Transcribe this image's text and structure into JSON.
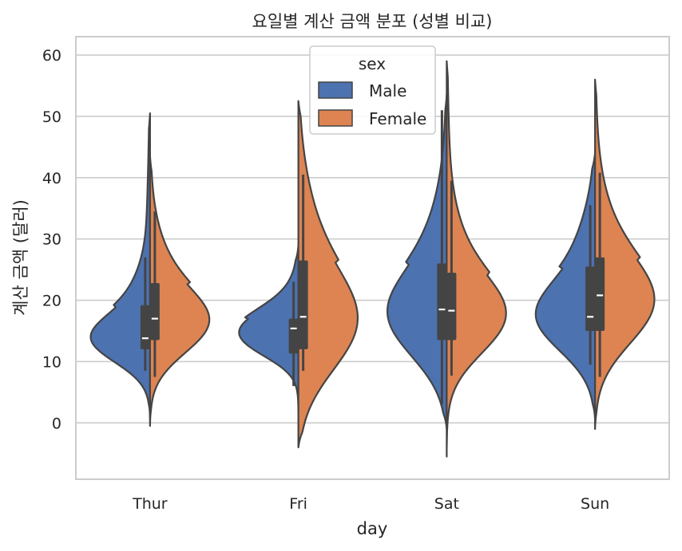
{
  "chart_data": {
    "type": "violin",
    "title": "요일별 계산 금액 분포 (성별 비교)",
    "xlabel": "day",
    "ylabel": "계산 금액 (달러)",
    "categories": [
      "Thur",
      "Fri",
      "Sat",
      "Sun"
    ],
    "ylim": [
      -9.2,
      63
    ],
    "yticks": [
      0,
      10,
      20,
      30,
      40,
      50,
      60
    ],
    "grid": true,
    "split": true,
    "legend": {
      "title": "sex",
      "position": "top-center"
    },
    "series": [
      {
        "name": "Male",
        "color": "#4c72b0",
        "violins": [
          {
            "day": "Thur",
            "min": 0.5,
            "max": 50.5,
            "q1": 12.0,
            "median": 13.8,
            "q3": 19.2,
            "whisker_low": 8.5,
            "whisker_high": 27.0
          },
          {
            "day": "Fri",
            "min": -0.5,
            "max": 29.0,
            "q1": 11.3,
            "median": 15.4,
            "q3": 17.0,
            "whisker_low": 6.0,
            "whisker_high": 23.0
          },
          {
            "day": "Sat",
            "min": -1.0,
            "max": 53.5,
            "q1": 13.5,
            "median": 18.5,
            "q3": 26.0,
            "whisker_low": 3.0,
            "whisker_high": 51.0
          },
          {
            "day": "Sun",
            "min": 0.5,
            "max": 44.0,
            "q1": 15.0,
            "median": 17.3,
            "q3": 25.5,
            "whisker_low": 9.5,
            "whisker_high": 35.5
          }
        ]
      },
      {
        "name": "Female",
        "color": "#dd8452",
        "violins": [
          {
            "day": "Thur",
            "min": -0.5,
            "max": 43.5,
            "q1": 13.5,
            "median": 17.0,
            "q3": 22.8,
            "whisker_low": 7.5,
            "whisker_high": 34.5
          },
          {
            "day": "Fri",
            "min": -4.0,
            "max": 52.5,
            "q1": 12.0,
            "median": 17.3,
            "q3": 26.5,
            "whisker_low": 8.5,
            "whisker_high": 40.5
          },
          {
            "day": "Sat",
            "min": -5.5,
            "max": 59.0,
            "q1": 13.5,
            "median": 18.3,
            "q3": 24.5,
            "whisker_low": 7.7,
            "whisker_high": 39.5
          },
          {
            "day": "Sun",
            "min": -1.0,
            "max": 56.0,
            "q1": 15.0,
            "median": 20.8,
            "q3": 27.0,
            "whisker_low": 7.5,
            "whisker_high": 40.8
          }
        ]
      }
    ]
  }
}
